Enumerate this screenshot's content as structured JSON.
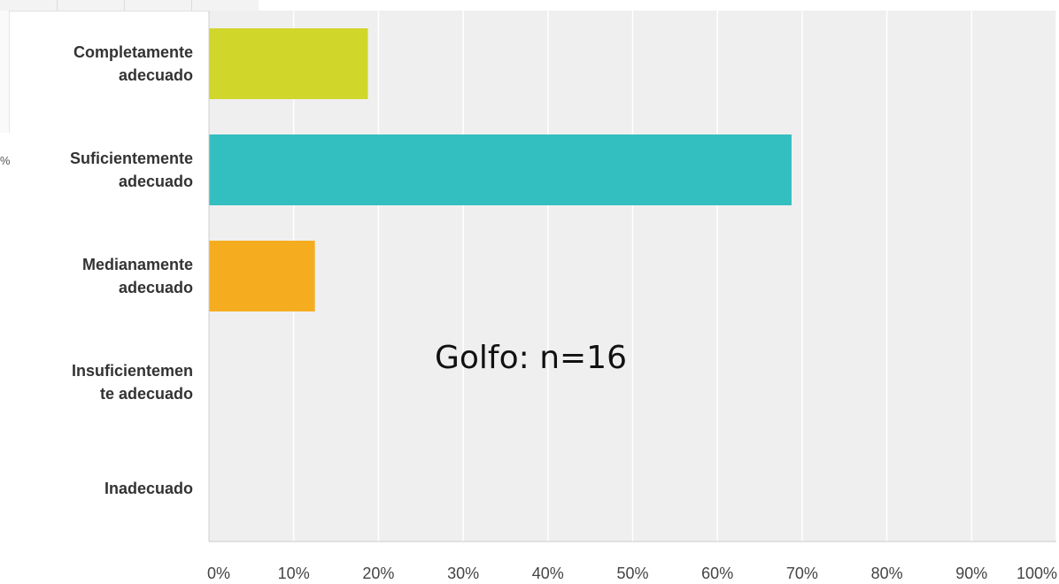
{
  "edge_fragment_text": "%",
  "chart_data": {
    "type": "bar",
    "orientation": "horizontal",
    "title": "",
    "xlabel": "",
    "ylabel": "",
    "categories": [
      [
        "Completamente",
        "adecuado"
      ],
      [
        "Suficientemente",
        "adecuado"
      ],
      [
        "Medianamente",
        "adecuado"
      ],
      [
        "Insuficientemen",
        "te adecuado"
      ],
      [
        "Inadecuado"
      ]
    ],
    "values": [
      18.75,
      68.75,
      12.5,
      0,
      0
    ],
    "colors": [
      "#d0d62a",
      "#33bec0",
      "#f5ad1f",
      "#999999",
      "#999999"
    ],
    "xlim": [
      0,
      100
    ],
    "xticks": [
      0,
      10,
      20,
      30,
      40,
      50,
      60,
      70,
      80,
      90,
      100
    ],
    "xtick_labels": [
      "0%",
      "10%",
      "20%",
      "30%",
      "40%",
      "50%",
      "60%",
      "70%",
      "80%",
      "90%",
      "100%"
    ],
    "grid": true,
    "background": "#efefef",
    "annotation": "Golfo: n=16"
  }
}
